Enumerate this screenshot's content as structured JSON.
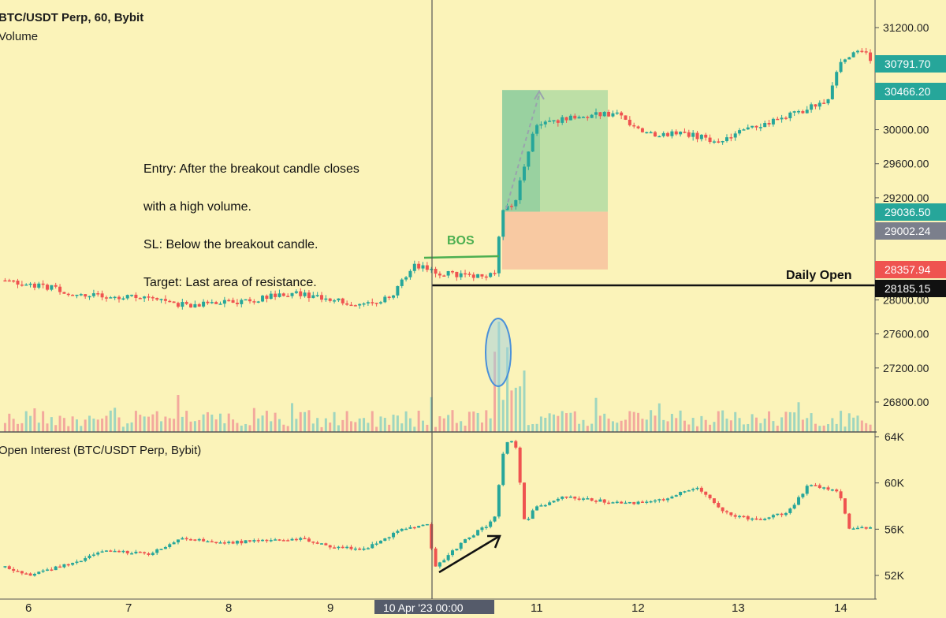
{
  "symbol": "BTC/USDT Perp, 60, Bybit",
  "volume_label": "Volume",
  "oi_label": "Open Interest (BTC/USDT Perp, Bybit)",
  "note": {
    "line1": "Entry: After the breakout candle closes",
    "line2": "with a high volume.",
    "line3": "SL: Below the breakout candle.",
    "line4": "Target: Last area of resistance."
  },
  "bos_label": "BOS",
  "daily_open_label": "Daily Open",
  "colors": {
    "up": "#26a69a",
    "down": "#ef5350",
    "background": "#fbf3b9",
    "grid": "#e8dfa8",
    "bos": "#4caf50",
    "target_zone": "#a8d8a0",
    "stop_zone": "#f7c4a0"
  },
  "price_badges": [
    {
      "label": "30791.70",
      "kind": "green"
    },
    {
      "label": "30466.20",
      "kind": "green"
    },
    {
      "label": "29036.50",
      "kind": "green"
    },
    {
      "label": "29002.24",
      "kind": "grey"
    },
    {
      "label": "28357.94",
      "kind": "red"
    },
    {
      "label": "28185.15",
      "kind": "black"
    }
  ],
  "time_badge": "10 Apr '23   00:00",
  "chart_data": [
    {
      "type": "candlestick",
      "title": "BTC/USDT Perp, 60, Bybit",
      "x_ticks": [
        "6",
        "7",
        "8",
        "9",
        "11",
        "12",
        "13",
        "14"
      ],
      "y_ticks": [
        31200,
        30800,
        30400,
        30000,
        29600,
        29200,
        28800,
        28400,
        28000,
        27600,
        27200,
        26800
      ],
      "y_tick_labels": [
        "31200.00",
        "30000.00",
        "29600.00",
        "29200.00",
        "28000.00",
        "27600.00",
        "27200.00",
        "26800.00"
      ],
      "ylim": [
        26600,
        31500
      ],
      "price_path": [
        {
          "x": 5.77,
          "y": 28230
        },
        {
          "x": 6.2,
          "y": 28150
        },
        {
          "x": 6.5,
          "y": 28060
        },
        {
          "x": 6.9,
          "y": 28020
        },
        {
          "x": 7.2,
          "y": 28060
        },
        {
          "x": 7.5,
          "y": 27940
        },
        {
          "x": 7.9,
          "y": 27960
        },
        {
          "x": 8.3,
          "y": 28020
        },
        {
          "x": 8.6,
          "y": 28080
        },
        {
          "x": 9.0,
          "y": 28010
        },
        {
          "x": 9.3,
          "y": 27930
        },
        {
          "x": 9.6,
          "y": 28050
        },
        {
          "x": 9.8,
          "y": 28420
        },
        {
          "x": 10.0,
          "y": 28330
        },
        {
          "x": 10.3,
          "y": 28290
        },
        {
          "x": 10.6,
          "y": 28300
        },
        {
          "x": 10.68,
          "y": 29050
        },
        {
          "x": 10.8,
          "y": 29150
        },
        {
          "x": 11.0,
          "y": 30050
        },
        {
          "x": 11.4,
          "y": 30150
        },
        {
          "x": 11.8,
          "y": 30200
        },
        {
          "x": 12.1,
          "y": 29950
        },
        {
          "x": 12.5,
          "y": 29950
        },
        {
          "x": 12.8,
          "y": 29870
        },
        {
          "x": 13.2,
          "y": 30050
        },
        {
          "x": 13.6,
          "y": 30200
        },
        {
          "x": 13.9,
          "y": 30350
        },
        {
          "x": 14.0,
          "y": 30750
        },
        {
          "x": 14.2,
          "y": 30950
        },
        {
          "x": 14.35,
          "y": 30790
        }
      ],
      "levels": {
        "daily_open": 28185.15,
        "bos": 28400,
        "entry": 29036.5,
        "target": 30466.2,
        "stop": 28357.94
      },
      "volume": {
        "baseline_y": 26620,
        "spike_x": 10.65,
        "spike_top_y": 27600
      }
    },
    {
      "type": "line",
      "title": "Open Interest (BTC/USDT Perp, Bybit)",
      "y_ticks": [
        64000,
        60000,
        56000,
        52000
      ],
      "y_tick_labels": [
        "64K",
        "60K",
        "56K",
        "52K"
      ],
      "ylim": [
        51000,
        65000
      ],
      "x": [
        5.77,
        6.0,
        6.4,
        6.8,
        7.2,
        7.5,
        7.9,
        8.3,
        8.7,
        9.0,
        9.3,
        9.7,
        9.95,
        10.0,
        10.3,
        10.6,
        10.7,
        10.8,
        10.9,
        11.0,
        11.3,
        11.6,
        11.9,
        12.3,
        12.6,
        12.9,
        13.2,
        13.5,
        13.7,
        14.0,
        14.1,
        14.35
      ],
      "values": [
        52800,
        52000,
        53000,
        54200,
        53800,
        55300,
        54800,
        55000,
        55200,
        54500,
        54200,
        56000,
        56500,
        52500,
        55000,
        56800,
        63500,
        63800,
        56500,
        57800,
        58800,
        58500,
        58200,
        58600,
        59700,
        57300,
        56800,
        57500,
        59800,
        59300,
        56000,
        56200
      ]
    }
  ]
}
